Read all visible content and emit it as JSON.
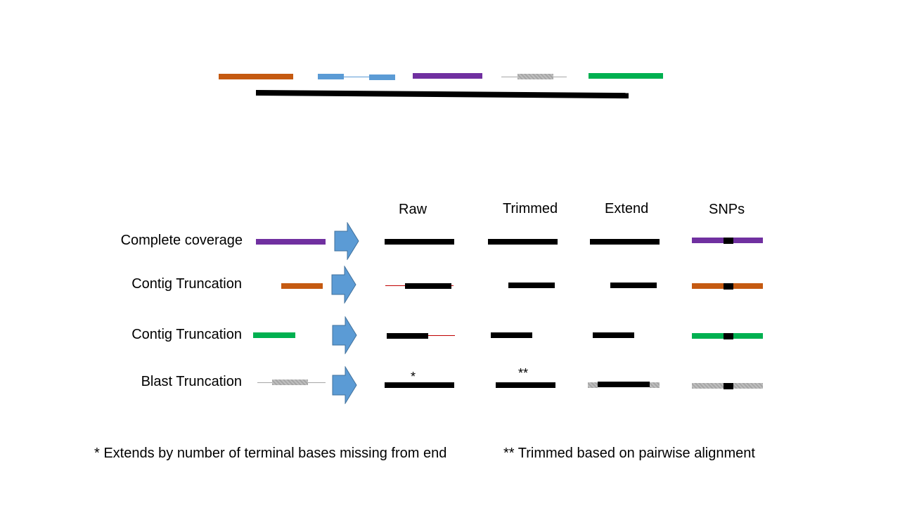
{
  "colors": {
    "orange": "#c55a11",
    "blue": "#5b9bd5",
    "purple": "#7030a0",
    "gray": "#a6a6a6",
    "green": "#00b050",
    "black": "#000000",
    "red": "#c00000",
    "arrow": "#5b9bd5"
  },
  "columns": {
    "raw": "Raw",
    "trimmed": "Trimmed",
    "extend": "Extend",
    "snps": "SNPs"
  },
  "rows": [
    {
      "label": "Complete coverage",
      "color": "purple"
    },
    {
      "label": "Contig Truncation",
      "color": "orange"
    },
    {
      "label": "Contig Truncation",
      "color": "green"
    },
    {
      "label": "Blast Truncation",
      "color": "gray"
    }
  ],
  "marks": {
    "single": "*",
    "double": "**"
  },
  "footnotes": {
    "left": "* Extends by number of terminal bases missing from end",
    "right": "** Trimmed based on pairwise alignment"
  }
}
